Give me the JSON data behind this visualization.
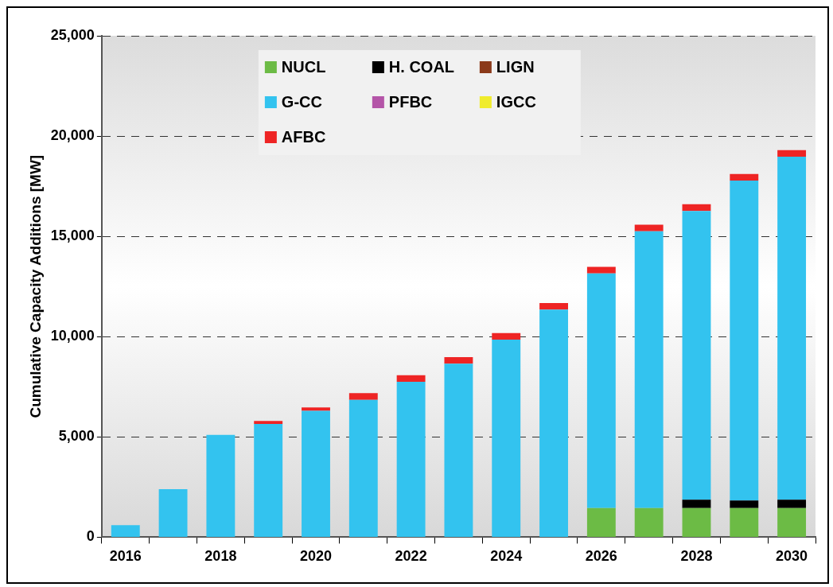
{
  "chart_data": {
    "type": "bar",
    "stacked": true,
    "ylabel": "Cumulative Capacity Additions [MW]",
    "categories": [
      "2016",
      null,
      "2018",
      null,
      "2020",
      null,
      "2022",
      null,
      "2024",
      null,
      "2026",
      null,
      "2028",
      null,
      "2030"
    ],
    "series": [
      {
        "name": "NUCL",
        "color": "#6cbb45",
        "values": [
          0,
          0,
          0,
          0,
          0,
          0,
          0,
          0,
          0,
          0,
          1450,
          1450,
          1450,
          1450,
          1450
        ]
      },
      {
        "name": "H. COAL",
        "color": "#000000",
        "values": [
          0,
          0,
          0,
          0,
          0,
          0,
          0,
          0,
          0,
          0,
          0,
          0,
          420,
          380,
          420
        ]
      },
      {
        "name": "LIGN",
        "color": "#8b3a1a",
        "values": [
          0,
          0,
          0,
          0,
          0,
          0,
          0,
          0,
          0,
          0,
          0,
          0,
          0,
          0,
          0
        ]
      },
      {
        "name": "G-CC",
        "color": "#33c3ef",
        "values": [
          600,
          2400,
          5100,
          5650,
          6300,
          6850,
          7750,
          8650,
          9850,
          11350,
          11700,
          13800,
          14400,
          15950,
          17100
        ]
      },
      {
        "name": "PFBC",
        "color": "#b455a8",
        "values": [
          0,
          0,
          0,
          0,
          0,
          0,
          0,
          0,
          0,
          0,
          0,
          0,
          0,
          0,
          0
        ]
      },
      {
        "name": "IGCC",
        "color": "#f0ec2c",
        "values": [
          0,
          0,
          0,
          0,
          0,
          0,
          0,
          0,
          0,
          0,
          0,
          0,
          0,
          0,
          0
        ]
      },
      {
        "name": "AFBC",
        "color": "#ee2424",
        "values": [
          0,
          0,
          0,
          150,
          170,
          330,
          330,
          330,
          330,
          330,
          330,
          330,
          330,
          330,
          330
        ]
      }
    ],
    "ylim": [
      0,
      25000
    ],
    "yticks": [
      0,
      {
        "value": 5000,
        "label": "5,000"
      },
      {
        "value": 10000,
        "label": "10,000"
      },
      {
        "value": 15000,
        "label": "15,000"
      },
      {
        "value": 20000,
        "label": "20,000"
      },
      {
        "value": 25000,
        "label": "25,000"
      }
    ],
    "grid": "y",
    "legend": "top left"
  }
}
